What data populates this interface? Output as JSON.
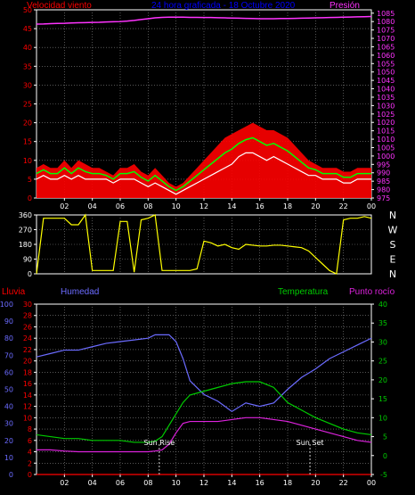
{
  "colors": {
    "background": "#000000",
    "grid": "#8a8a8a",
    "axis": "#ffffff",
    "wind_avg": "#ffffff",
    "wind_gust": "#ff0000",
    "wind_green": "#00ff00",
    "pressure": "#ff33ff",
    "direction": "#ffff00",
    "rain": "#ff0000",
    "humidity": "#6b6bff",
    "temperature": "#00cc00",
    "dewpoint": "#dd22dd",
    "title": "#0000ff",
    "sun": "#ffffff"
  },
  "header": {
    "wind_label": "Velocidad viento",
    "title": "24 hora graficada - 18 Octubre 2020",
    "pressure_label": "Presión"
  },
  "x_ticks": [
    "02",
    "04",
    "06",
    "08",
    "10",
    "12",
    "14",
    "16",
    "18",
    "20",
    "22",
    "00"
  ],
  "direction_letters": [
    "N",
    "W",
    "S",
    "E",
    "N"
  ],
  "middle_header": {
    "rain_label": "Lluvia",
    "humidity_label": "Humedad",
    "temp_label": "Temperatura",
    "dew_label": "Punto rocío"
  },
  "sun_labels": {
    "rise": "Sun Rise",
    "set": "Sun Set"
  },
  "chart_data": [
    {
      "type": "line",
      "name_ref": "wind_and_pressure",
      "xlabel": "",
      "x_hours": [
        0,
        0.5,
        1,
        1.5,
        2,
        2.5,
        3,
        3.5,
        4,
        4.5,
        5,
        5.5,
        6,
        6.5,
        7,
        7.5,
        8,
        8.5,
        9,
        9.5,
        10,
        10.5,
        11,
        11.5,
        12,
        12.5,
        13,
        13.5,
        14,
        14.5,
        15,
        15.5,
        16,
        16.5,
        17,
        17.5,
        18,
        18.5,
        19,
        19.5,
        20,
        20.5,
        21,
        21.5,
        22,
        22.5,
        23,
        23.5,
        24
      ],
      "y_left_ticks": [
        0,
        5,
        10,
        15,
        20,
        25,
        30,
        35,
        40,
        45,
        50
      ],
      "ylim_left": [
        0,
        50
      ],
      "y_right_ticks": [
        975,
        980,
        985,
        990,
        995,
        1000,
        1005,
        1010,
        1015,
        1020,
        1025,
        1030,
        1035,
        1040,
        1045,
        1050,
        1055,
        1060,
        1065,
        1070,
        1075,
        1080,
        1085
      ],
      "ylim_right": [
        975,
        1087
      ],
      "wind_speed": [
        5,
        6,
        5,
        5,
        6,
        5,
        6,
        5,
        5,
        5,
        5,
        4,
        5,
        5,
        5,
        4,
        3,
        4,
        3,
        2,
        1,
        2,
        3,
        4,
        5,
        6,
        7,
        8,
        9,
        11,
        12,
        12,
        11,
        10,
        11,
        10,
        9,
        8,
        7,
        6,
        6,
        5,
        5,
        5,
        4,
        4,
        5,
        5,
        5
      ],
      "wind_gust": [
        8,
        9,
        8,
        8,
        10,
        8,
        10,
        9,
        8,
        8,
        7,
        6,
        8,
        8,
        9,
        7,
        6,
        8,
        6,
        4,
        3,
        4,
        6,
        8,
        10,
        12,
        14,
        16,
        17,
        18,
        19,
        20,
        19,
        18,
        18,
        17,
        16,
        14,
        12,
        10,
        9,
        8,
        8,
        8,
        7,
        7,
        8,
        8,
        8
      ],
      "pressure": [
        1078.5,
        1078.6,
        1078.8,
        1078.9,
        1079,
        1079.2,
        1079.3,
        1079.4,
        1079.5,
        1079.6,
        1079.8,
        1079.9,
        1080,
        1080.3,
        1080.7,
        1081.2,
        1081.7,
        1082.2,
        1082.5,
        1082.6,
        1082.6,
        1082.6,
        1082.5,
        1082.5,
        1082.4,
        1082.4,
        1082.3,
        1082.2,
        1082.1,
        1082,
        1081.9,
        1081.8,
        1081.7,
        1081.7,
        1081.7,
        1081.8,
        1081.8,
        1081.9,
        1082,
        1082.1,
        1082.2,
        1082.3,
        1082.4,
        1082.5,
        1082.6,
        1082.7,
        1082.8,
        1082.9,
        1083
      ]
    },
    {
      "type": "line",
      "name_ref": "wind_direction",
      "y_ticks": [
        0,
        90,
        180,
        270,
        360
      ],
      "ylim": [
        0,
        360
      ],
      "x_hours": [
        0,
        0.5,
        1,
        1.5,
        2,
        2.5,
        3,
        3.5,
        4,
        4.5,
        5,
        5.5,
        6,
        6.5,
        7,
        7.5,
        8,
        8.5,
        9,
        9.5,
        10,
        10.5,
        11,
        11.5,
        12,
        12.5,
        13,
        13.5,
        14,
        14.5,
        15,
        15.5,
        16,
        16.5,
        17,
        17.5,
        18,
        18.5,
        19,
        19.5,
        20,
        20.5,
        21,
        21.5,
        22,
        22.5,
        23,
        23.5,
        24
      ],
      "direction": [
        0,
        340,
        340,
        340,
        340,
        300,
        300,
        360,
        20,
        20,
        20,
        20,
        320,
        320,
        10,
        330,
        340,
        360,
        20,
        20,
        20,
        20,
        20,
        30,
        200,
        190,
        170,
        180,
        160,
        150,
        180,
        175,
        170,
        170,
        175,
        175,
        170,
        165,
        160,
        140,
        100,
        60,
        20,
        0,
        330,
        340,
        340,
        350,
        340
      ]
    },
    {
      "type": "line",
      "name_ref": "temp_humidity_rain",
      "x_hours": [
        0,
        1,
        2,
        3,
        4,
        5,
        6,
        7,
        8,
        8.5,
        9,
        9.5,
        10,
        10.5,
        11,
        12,
        13,
        14,
        15,
        16,
        17,
        18,
        19,
        20,
        21,
        22,
        23,
        24
      ],
      "y_left_humidity_ticks": [
        0,
        10,
        20,
        30,
        40,
        50,
        60,
        70,
        80,
        90,
        100
      ],
      "ylim_humidity": [
        0,
        100
      ],
      "y_left_rain_ticks": [
        0,
        2,
        4,
        6,
        8,
        10,
        12,
        14,
        16,
        18,
        20,
        22,
        24,
        26,
        28,
        30
      ],
      "ylim_rain": [
        0,
        30
      ],
      "y_right_ticks": [
        -5,
        0,
        5,
        10,
        15,
        20,
        25,
        30,
        35,
        40
      ],
      "ylim_temp": [
        -5,
        40
      ],
      "humidity": [
        69,
        71,
        73,
        73,
        75,
        77,
        78,
        79,
        80,
        82,
        82,
        82,
        78,
        68,
        55,
        47,
        43,
        37,
        42,
        40,
        42,
        50,
        57,
        62,
        68,
        72,
        76,
        80
      ],
      "temperature": [
        5.5,
        5,
        4.5,
        4.5,
        4,
        4,
        4,
        3.5,
        3.5,
        3.8,
        5,
        8,
        11,
        14,
        16,
        17,
        18,
        19,
        19.5,
        19.5,
        18,
        14,
        12,
        10,
        8.5,
        7,
        6,
        5.5
      ],
      "dewpoint": [
        1.5,
        1.5,
        1.2,
        1,
        1,
        1,
        1,
        1,
        1,
        1.2,
        1.5,
        3,
        6,
        8.5,
        9,
        9,
        9,
        9.5,
        10,
        10,
        9.5,
        9,
        8,
        7,
        6,
        5,
        4,
        3.5
      ],
      "rain": [
        0,
        0,
        0,
        0,
        0,
        0,
        0,
        0,
        0,
        0,
        0,
        0,
        0,
        0,
        0,
        0,
        0,
        0,
        0,
        0,
        0,
        0,
        0,
        0,
        0,
        0,
        0,
        0
      ],
      "sun_rise_hour": 8.8,
      "sun_set_hour": 19.6
    }
  ]
}
